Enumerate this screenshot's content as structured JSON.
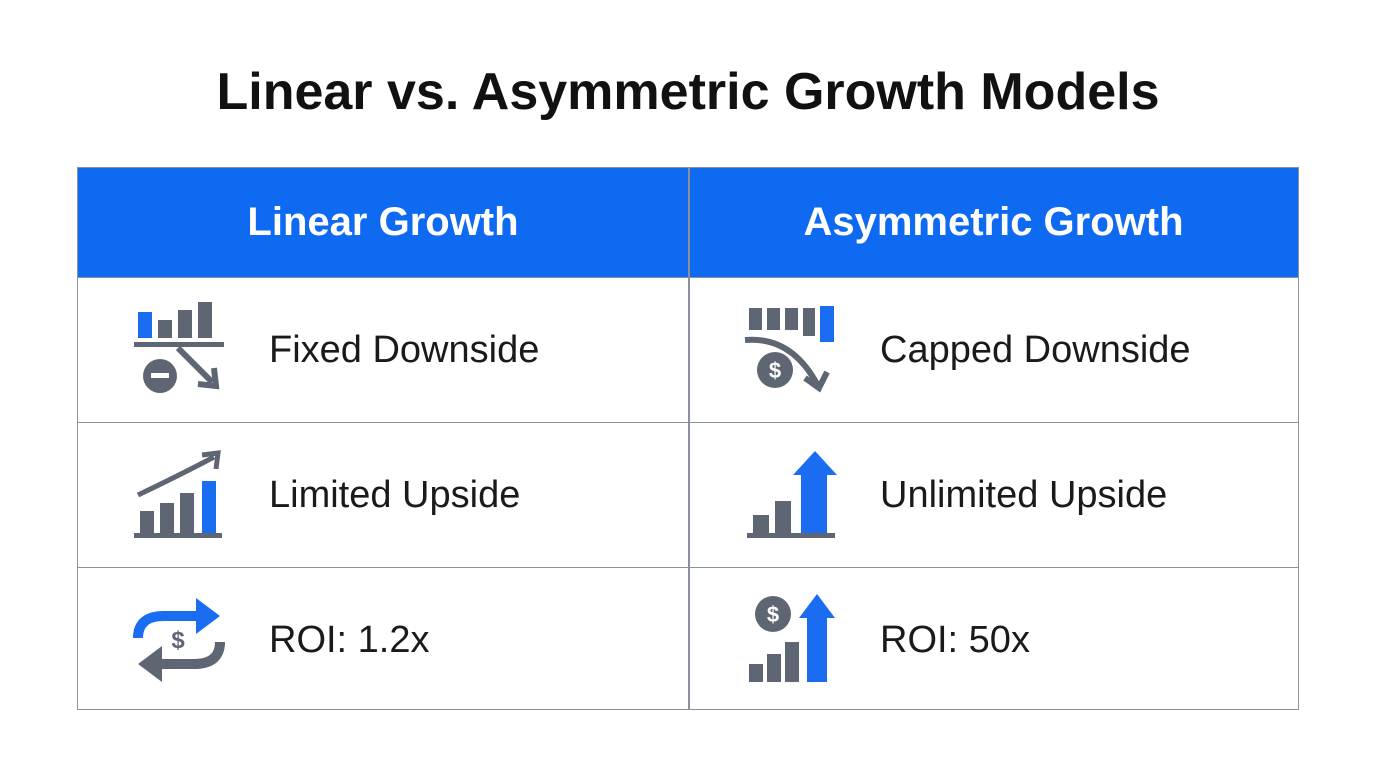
{
  "title": "Linear vs. Asymmetric Growth Models",
  "table": {
    "headers": [
      "Linear Growth",
      "Asymmetric Growth"
    ],
    "rows": [
      [
        "Fixed Downside",
        "Capped Downside"
      ],
      [
        "Limited Upside",
        "Unlimited Upside"
      ],
      [
        "ROI: 1.2x",
        "ROI: 50x"
      ]
    ]
  }
}
